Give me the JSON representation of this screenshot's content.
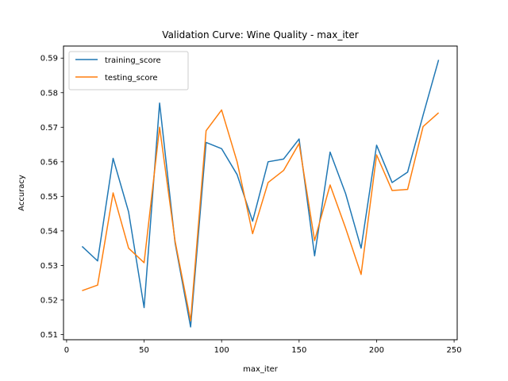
{
  "chart_data": {
    "type": "line",
    "title": "Validation Curve: Wine Quality - max_iter",
    "xlabel": "max_iter",
    "ylabel": "Accuracy",
    "xlim": [
      -2,
      252
    ],
    "ylim": [
      0.5085,
      0.5935
    ],
    "xticks": [
      0,
      50,
      100,
      150,
      200,
      250
    ],
    "yticks": [
      0.51,
      0.52,
      0.53,
      0.54,
      0.55,
      0.56,
      0.57,
      0.58,
      0.59
    ],
    "legend_position": "top-left",
    "grid": false,
    "x": [
      10,
      20,
      30,
      40,
      50,
      60,
      70,
      80,
      90,
      100,
      110,
      120,
      130,
      140,
      150,
      160,
      170,
      180,
      190,
      200,
      210,
      220,
      230,
      240
    ],
    "series": [
      {
        "name": "training_score",
        "color": "#1f77b4",
        "values": [
          0.5355,
          0.5313,
          0.561,
          0.5455,
          0.5178,
          0.577,
          0.5365,
          0.5122,
          0.5656,
          0.5638,
          0.5563,
          0.5428,
          0.56,
          0.5608,
          0.5666,
          0.5328,
          0.5628,
          0.5508,
          0.535,
          0.5648,
          0.554,
          0.557,
          0.5735,
          0.5895
        ]
      },
      {
        "name": "testing_score",
        "color": "#ff7f0e",
        "values": [
          0.5227,
          0.5243,
          0.551,
          0.535,
          0.5308,
          0.57,
          0.537,
          0.514,
          0.569,
          0.575,
          0.56,
          0.5392,
          0.554,
          0.5575,
          0.5653,
          0.5372,
          0.5533,
          0.5408,
          0.5274,
          0.562,
          0.5517,
          0.552,
          0.5702,
          0.5742
        ]
      }
    ]
  }
}
